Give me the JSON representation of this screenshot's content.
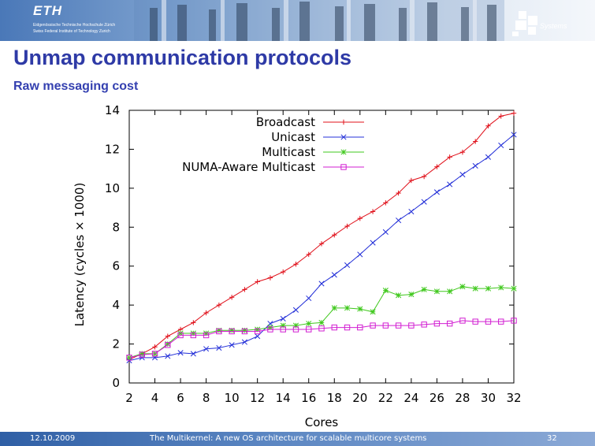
{
  "header": {
    "logo_text": "ETH",
    "institute_line1": "Eidgenössische Technische Hochschule Zürich",
    "institute_line2": "Swiss Federal Institute of Technology Zurich",
    "group_label": "Systems"
  },
  "slide": {
    "title": "Unmap communication protocols",
    "subtitle": "Raw messaging cost"
  },
  "footer": {
    "date": "12.10.2009",
    "caption": "The Multikernel: A new OS architecture for scalable multicore systems",
    "page_number": "32"
  },
  "colors": {
    "title": "#2e3aa6",
    "broadcast": "#e0101a",
    "unicast": "#2430d8",
    "multicast": "#3fc81c",
    "numa": "#d21ed2"
  },
  "chart_data": {
    "type": "line",
    "xlabel": "Cores",
    "ylabel": "Latency (cycles × 1000)",
    "xlim": [
      2,
      32
    ],
    "ylim": [
      0,
      14
    ],
    "x_ticks": [
      2,
      4,
      6,
      8,
      10,
      12,
      14,
      16,
      18,
      20,
      22,
      24,
      26,
      28,
      30,
      32
    ],
    "y_ticks": [
      0,
      2,
      4,
      6,
      8,
      10,
      12,
      14
    ],
    "legend_position": "top-right",
    "x": [
      2,
      3,
      4,
      5,
      6,
      7,
      8,
      9,
      10,
      11,
      12,
      13,
      14,
      15,
      16,
      17,
      18,
      19,
      20,
      21,
      22,
      23,
      24,
      25,
      26,
      27,
      28,
      29,
      30,
      31,
      32
    ],
    "series": [
      {
        "name": "Broadcast",
        "marker": "plus",
        "color": "#e0101a",
        "values": [
          1.2,
          1.5,
          1.85,
          2.4,
          2.75,
          3.1,
          3.6,
          4.0,
          4.4,
          4.8,
          5.2,
          5.4,
          5.7,
          6.1,
          6.6,
          7.15,
          7.6,
          8.05,
          8.45,
          8.8,
          9.25,
          9.75,
          10.4,
          10.6,
          11.1,
          11.6,
          11.85,
          12.4,
          13.2,
          13.7,
          13.85
        ]
      },
      {
        "name": "Unicast",
        "marker": "x",
        "color": "#2430d8",
        "values": [
          1.15,
          1.3,
          1.3,
          1.38,
          1.55,
          1.5,
          1.75,
          1.8,
          1.95,
          2.1,
          2.4,
          3.05,
          3.3,
          3.75,
          4.35,
          5.1,
          5.55,
          6.05,
          6.6,
          7.2,
          7.75,
          8.35,
          8.8,
          9.3,
          9.8,
          10.2,
          10.7,
          11.15,
          11.6,
          12.2,
          12.75
        ]
      },
      {
        "name": "Multicast",
        "marker": "star",
        "color": "#3fc81c",
        "values": [
          1.3,
          1.5,
          1.5,
          2.0,
          2.55,
          2.55,
          2.55,
          2.7,
          2.7,
          2.7,
          2.75,
          2.85,
          2.95,
          2.95,
          3.05,
          3.1,
          3.85,
          3.85,
          3.8,
          3.65,
          4.75,
          4.5,
          4.55,
          4.8,
          4.7,
          4.7,
          4.95,
          4.85,
          4.85,
          4.9,
          4.85
        ]
      },
      {
        "name": "NUMA-Aware Multicast",
        "marker": "square",
        "color": "#d21ed2",
        "values": [
          1.3,
          1.45,
          1.5,
          1.95,
          2.45,
          2.45,
          2.45,
          2.65,
          2.65,
          2.65,
          2.65,
          2.75,
          2.75,
          2.75,
          2.75,
          2.8,
          2.85,
          2.85,
          2.85,
          2.95,
          2.95,
          2.95,
          2.95,
          3.0,
          3.05,
          3.05,
          3.2,
          3.15,
          3.15,
          3.15,
          3.2
        ]
      }
    ]
  }
}
